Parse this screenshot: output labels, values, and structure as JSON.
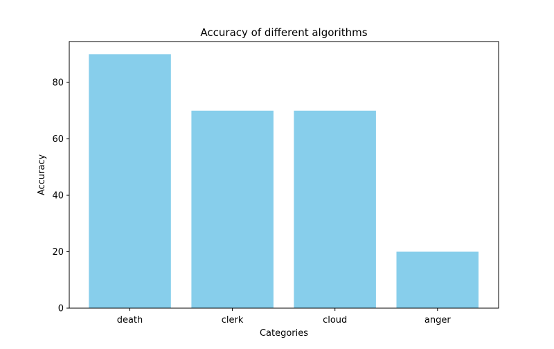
{
  "chart_data": {
    "type": "bar",
    "title": "Accuracy of different algorithms",
    "xlabel": "Categories",
    "ylabel": "Accuracy",
    "categories": [
      "death",
      "clerk",
      "cloud",
      "anger"
    ],
    "values": [
      90,
      70,
      70,
      20
    ],
    "ylim": [
      0,
      94.5
    ],
    "yticks": [
      0,
      20,
      40,
      60,
      80
    ],
    "bar_color": "#87ceeb",
    "grid": false,
    "legend": "none"
  }
}
